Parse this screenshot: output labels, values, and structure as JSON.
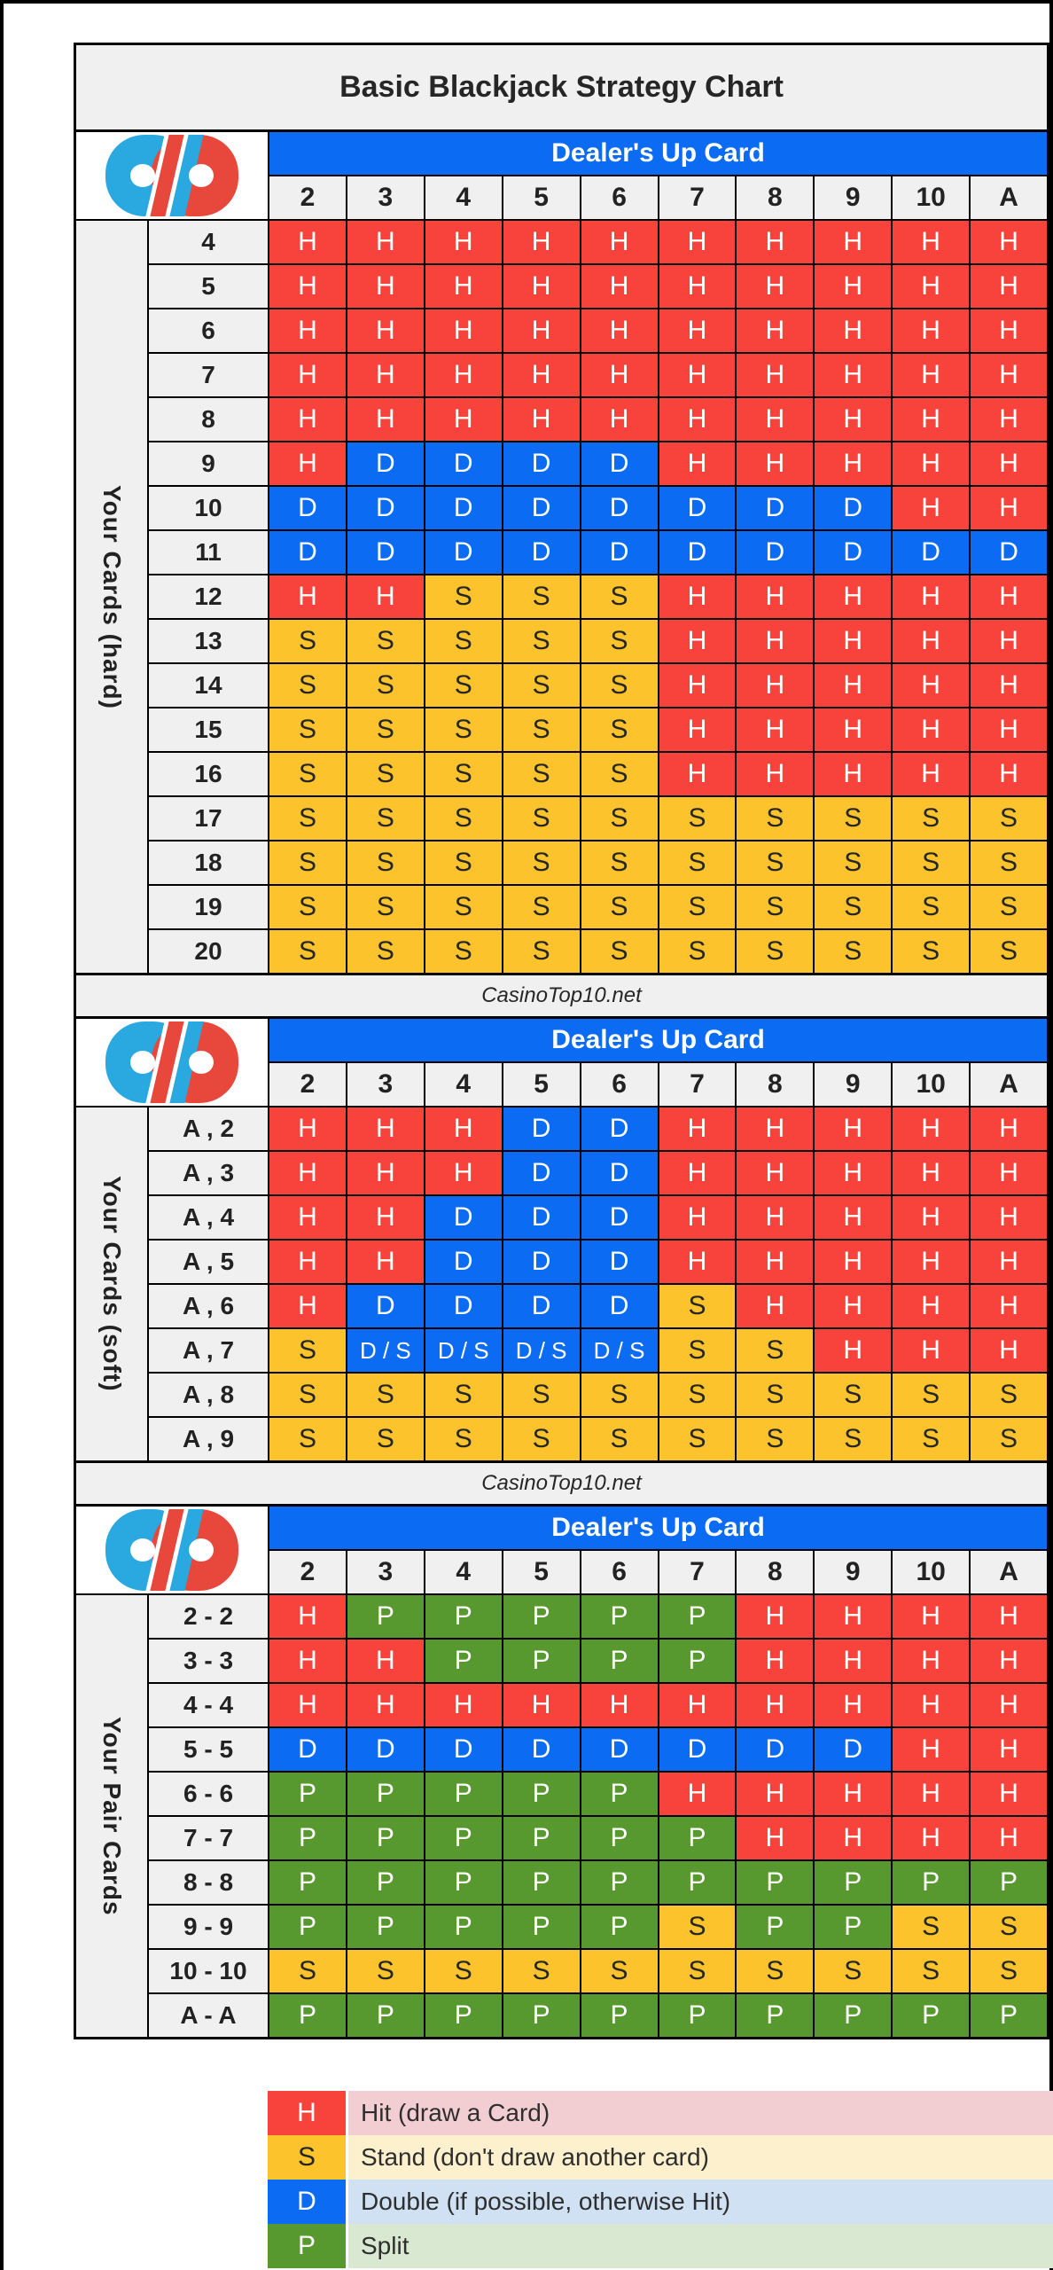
{
  "title": "Basic Blackjack Strategy Chart",
  "watermark": "CasinoTop10.net",
  "dealer_header_label": "Dealer's Up Card",
  "dealer_cards": [
    "2",
    "3",
    "4",
    "5",
    "6",
    "7",
    "8",
    "9",
    "10",
    "A"
  ],
  "logo_name": "CasinoTop10 logo",
  "colors": {
    "hit": "#f8423c",
    "stand": "#fcc32d",
    "double": "#0b6cf3",
    "split": "#57992f",
    "header_blue": "#0b6cf3",
    "label_gray": "#f0f0f1",
    "legend_hit_bg": "#f2ced2",
    "legend_stand_bg": "#fdf1cd",
    "legend_double_bg": "#cfe1f3",
    "legend_split_bg": "#d8e8d1",
    "logo_blue": "#2aa9e0",
    "logo_red": "#e8473b"
  },
  "chart_data": [
    {
      "type": "table",
      "name": "hard-totals",
      "side_label": "Your Cards (hard)",
      "columns": [
        "2",
        "3",
        "4",
        "5",
        "6",
        "7",
        "8",
        "9",
        "10",
        "A"
      ],
      "rows": [
        {
          "label": "4",
          "actions": [
            "H",
            "H",
            "H",
            "H",
            "H",
            "H",
            "H",
            "H",
            "H",
            "H"
          ]
        },
        {
          "label": "5",
          "actions": [
            "H",
            "H",
            "H",
            "H",
            "H",
            "H",
            "H",
            "H",
            "H",
            "H"
          ]
        },
        {
          "label": "6",
          "actions": [
            "H",
            "H",
            "H",
            "H",
            "H",
            "H",
            "H",
            "H",
            "H",
            "H"
          ]
        },
        {
          "label": "7",
          "actions": [
            "H",
            "H",
            "H",
            "H",
            "H",
            "H",
            "H",
            "H",
            "H",
            "H"
          ]
        },
        {
          "label": "8",
          "actions": [
            "H",
            "H",
            "H",
            "H",
            "H",
            "H",
            "H",
            "H",
            "H",
            "H"
          ]
        },
        {
          "label": "9",
          "actions": [
            "H",
            "D",
            "D",
            "D",
            "D",
            "H",
            "H",
            "H",
            "H",
            "H"
          ]
        },
        {
          "label": "10",
          "actions": [
            "D",
            "D",
            "D",
            "D",
            "D",
            "D",
            "D",
            "D",
            "H",
            "H"
          ]
        },
        {
          "label": "11",
          "actions": [
            "D",
            "D",
            "D",
            "D",
            "D",
            "D",
            "D",
            "D",
            "D",
            "D"
          ]
        },
        {
          "label": "12",
          "actions": [
            "H",
            "H",
            "S",
            "S",
            "S",
            "H",
            "H",
            "H",
            "H",
            "H"
          ]
        },
        {
          "label": "13",
          "actions": [
            "S",
            "S",
            "S",
            "S",
            "S",
            "H",
            "H",
            "H",
            "H",
            "H"
          ]
        },
        {
          "label": "14",
          "actions": [
            "S",
            "S",
            "S",
            "S",
            "S",
            "H",
            "H",
            "H",
            "H",
            "H"
          ]
        },
        {
          "label": "15",
          "actions": [
            "S",
            "S",
            "S",
            "S",
            "S",
            "H",
            "H",
            "H",
            "H",
            "H"
          ]
        },
        {
          "label": "16",
          "actions": [
            "S",
            "S",
            "S",
            "S",
            "S",
            "H",
            "H",
            "H",
            "H",
            "H"
          ]
        },
        {
          "label": "17",
          "actions": [
            "S",
            "S",
            "S",
            "S",
            "S",
            "S",
            "S",
            "S",
            "S",
            "S"
          ]
        },
        {
          "label": "18",
          "actions": [
            "S",
            "S",
            "S",
            "S",
            "S",
            "S",
            "S",
            "S",
            "S",
            "S"
          ]
        },
        {
          "label": "19",
          "actions": [
            "S",
            "S",
            "S",
            "S",
            "S",
            "S",
            "S",
            "S",
            "S",
            "S"
          ]
        },
        {
          "label": "20",
          "actions": [
            "S",
            "S",
            "S",
            "S",
            "S",
            "S",
            "S",
            "S",
            "S",
            "S"
          ]
        }
      ]
    },
    {
      "type": "table",
      "name": "soft-totals",
      "side_label": "Your Cards (soft)",
      "columns": [
        "2",
        "3",
        "4",
        "5",
        "6",
        "7",
        "8",
        "9",
        "10",
        "A"
      ],
      "rows": [
        {
          "label": "A , 2",
          "actions": [
            "H",
            "H",
            "H",
            "D",
            "D",
            "H",
            "H",
            "H",
            "H",
            "H"
          ]
        },
        {
          "label": "A , 3",
          "actions": [
            "H",
            "H",
            "H",
            "D",
            "D",
            "H",
            "H",
            "H",
            "H",
            "H"
          ]
        },
        {
          "label": "A , 4",
          "actions": [
            "H",
            "H",
            "D",
            "D",
            "D",
            "H",
            "H",
            "H",
            "H",
            "H"
          ]
        },
        {
          "label": "A , 5",
          "actions": [
            "H",
            "H",
            "D",
            "D",
            "D",
            "H",
            "H",
            "H",
            "H",
            "H"
          ]
        },
        {
          "label": "A , 6",
          "actions": [
            "H",
            "D",
            "D",
            "D",
            "D",
            "S",
            "H",
            "H",
            "H",
            "H"
          ]
        },
        {
          "label": "A , 7",
          "actions": [
            "S",
            "D / S",
            "D / S",
            "D / S",
            "D / S",
            "S",
            "S",
            "H",
            "H",
            "H"
          ]
        },
        {
          "label": "A , 8",
          "actions": [
            "S",
            "S",
            "S",
            "S",
            "S",
            "S",
            "S",
            "S",
            "S",
            "S"
          ]
        },
        {
          "label": "A , 9",
          "actions": [
            "S",
            "S",
            "S",
            "S",
            "S",
            "S",
            "S",
            "S",
            "S",
            "S"
          ]
        }
      ]
    },
    {
      "type": "table",
      "name": "pairs",
      "side_label": "Your Pair Cards",
      "columns": [
        "2",
        "3",
        "4",
        "5",
        "6",
        "7",
        "8",
        "9",
        "10",
        "A"
      ],
      "rows": [
        {
          "label": "2 - 2",
          "actions": [
            "H",
            "P",
            "P",
            "P",
            "P",
            "P",
            "H",
            "H",
            "H",
            "H"
          ]
        },
        {
          "label": "3 - 3",
          "actions": [
            "H",
            "H",
            "P",
            "P",
            "P",
            "P",
            "H",
            "H",
            "H",
            "H"
          ]
        },
        {
          "label": "4 - 4",
          "actions": [
            "H",
            "H",
            "H",
            "H",
            "H",
            "H",
            "H",
            "H",
            "H",
            "H"
          ]
        },
        {
          "label": "5 - 5",
          "actions": [
            "D",
            "D",
            "D",
            "D",
            "D",
            "D",
            "D",
            "D",
            "H",
            "H"
          ]
        },
        {
          "label": "6 - 6",
          "actions": [
            "P",
            "P",
            "P",
            "P",
            "P",
            "H",
            "H",
            "H",
            "H",
            "H"
          ]
        },
        {
          "label": "7 - 7",
          "actions": [
            "P",
            "P",
            "P",
            "P",
            "P",
            "P",
            "H",
            "H",
            "H",
            "H"
          ]
        },
        {
          "label": "8 - 8",
          "actions": [
            "P",
            "P",
            "P",
            "P",
            "P",
            "P",
            "P",
            "P",
            "P",
            "P"
          ]
        },
        {
          "label": "9 - 9",
          "actions": [
            "P",
            "P",
            "P",
            "P",
            "P",
            "S",
            "P",
            "P",
            "S",
            "S"
          ]
        },
        {
          "label": "10 - 10",
          "actions": [
            "S",
            "S",
            "S",
            "S",
            "S",
            "S",
            "S",
            "S",
            "S",
            "S"
          ]
        },
        {
          "label": "A - A",
          "actions": [
            "P",
            "P",
            "P",
            "P",
            "P",
            "P",
            "P",
            "P",
            "P",
            "P"
          ]
        }
      ]
    }
  ],
  "legend": [
    {
      "code": "H",
      "key": "H",
      "label": "Hit (draw a Card)"
    },
    {
      "code": "S",
      "key": "S",
      "label": "Stand (don't draw another card)"
    },
    {
      "code": "D",
      "key": "D",
      "label": "Double (if possible, otherwise Hit)"
    },
    {
      "code": "P",
      "key": "P",
      "label": "Split"
    }
  ]
}
